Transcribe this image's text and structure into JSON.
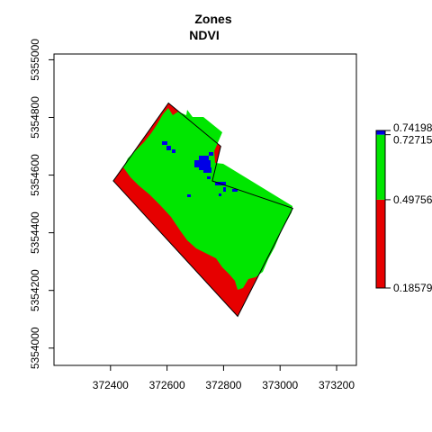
{
  "chart_data": {
    "type": "heatmap",
    "title": "Zones",
    "subtitle": "NDVI",
    "xlabel": "",
    "ylabel": "",
    "xlim": [
      372200,
      373270
    ],
    "ylim": [
      5353940,
      5355020
    ],
    "x_ticks": [
      372400,
      372600,
      372800,
      373000,
      373200
    ],
    "y_ticks": [
      5354000,
      5354200,
      5354400,
      5354600,
      5354800,
      5355000
    ],
    "x_tick_labels": [
      "372400",
      "372600",
      "372800",
      "373000",
      "373200"
    ],
    "y_tick_labels": [
      "5354000",
      "5354200",
      "5354400",
      "5354600",
      "5354800",
      "5355000"
    ],
    "field_boundary": [
      [
        372605,
        5354850
      ],
      [
        372790,
        5354700
      ],
      [
        372760,
        5354580
      ],
      [
        373045,
        5354485
      ],
      [
        372850,
        5354110
      ],
      [
        372410,
        5354580
      ]
    ],
    "zone_colors": {
      "low": "#e60000",
      "mid": "#00e600",
      "high": "#0000e6"
    },
    "legend": {
      "breaks": [
        0.18579,
        0.49756,
        0.72715,
        0.74198
      ],
      "labels": [
        "0.18579",
        "0.49756",
        "0.72715",
        "0.74198"
      ],
      "colors": [
        "#e60000",
        "#00e600",
        "#0000e6"
      ],
      "position": "right"
    }
  }
}
